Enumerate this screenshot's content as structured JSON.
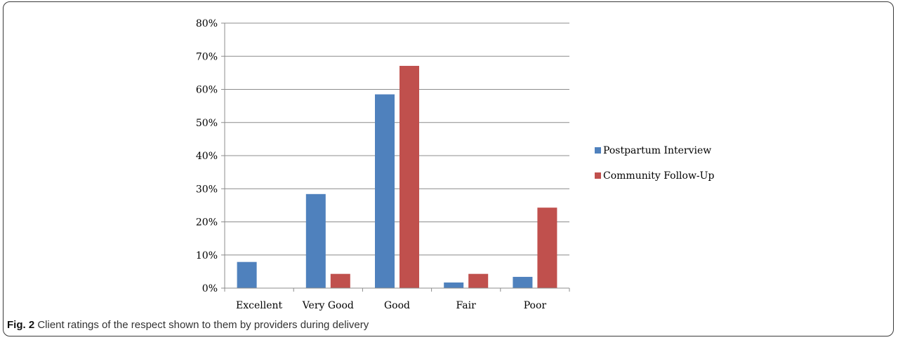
{
  "chart_data": {
    "type": "bar",
    "categories": [
      "Excellent",
      "Very Good",
      "Good",
      "Fair",
      "Poor"
    ],
    "series": [
      {
        "name": "Postpartum Interview",
        "color": "#4f81bd",
        "values": [
          7.9,
          28.4,
          58.5,
          1.7,
          3.4
        ]
      },
      {
        "name": "Community Follow-Up",
        "color": "#c0504d",
        "values": [
          0,
          4.3,
          67.1,
          4.3,
          24.3
        ]
      }
    ],
    "ylim": [
      0,
      80
    ],
    "yticks": [
      0,
      10,
      20,
      30,
      40,
      50,
      60,
      70,
      80
    ],
    "ytick_format": "percent",
    "grid": true,
    "legend_position": "right"
  },
  "caption": {
    "label": "Fig. 2",
    "text": " Client ratings of the respect shown to them by providers during delivery"
  }
}
